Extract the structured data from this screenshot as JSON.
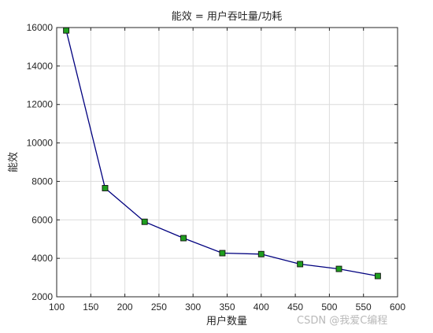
{
  "chart_data": {
    "type": "line",
    "title": "能效 = 用户吞吐量/功耗",
    "xlabel": "用户数量",
    "ylabel": "能效",
    "xlim": [
      100,
      600
    ],
    "ylim": [
      2000,
      16000
    ],
    "xticks": [
      100,
      150,
      200,
      250,
      300,
      350,
      400,
      450,
      500,
      550,
      600
    ],
    "yticks": [
      2000,
      4000,
      6000,
      8000,
      10000,
      12000,
      14000,
      16000
    ],
    "grid": true,
    "series": [
      {
        "x": [
          114,
          171,
          229,
          286,
          343,
          400,
          457,
          514,
          571
        ],
        "y": [
          15850,
          7650,
          5900,
          5050,
          4270,
          4220,
          3700,
          3450,
          3080
        ],
        "line_color": "#00007f",
        "marker": "square",
        "marker_color": "#1e9e1e"
      }
    ]
  },
  "watermark": "CSDN @我爱C编程"
}
